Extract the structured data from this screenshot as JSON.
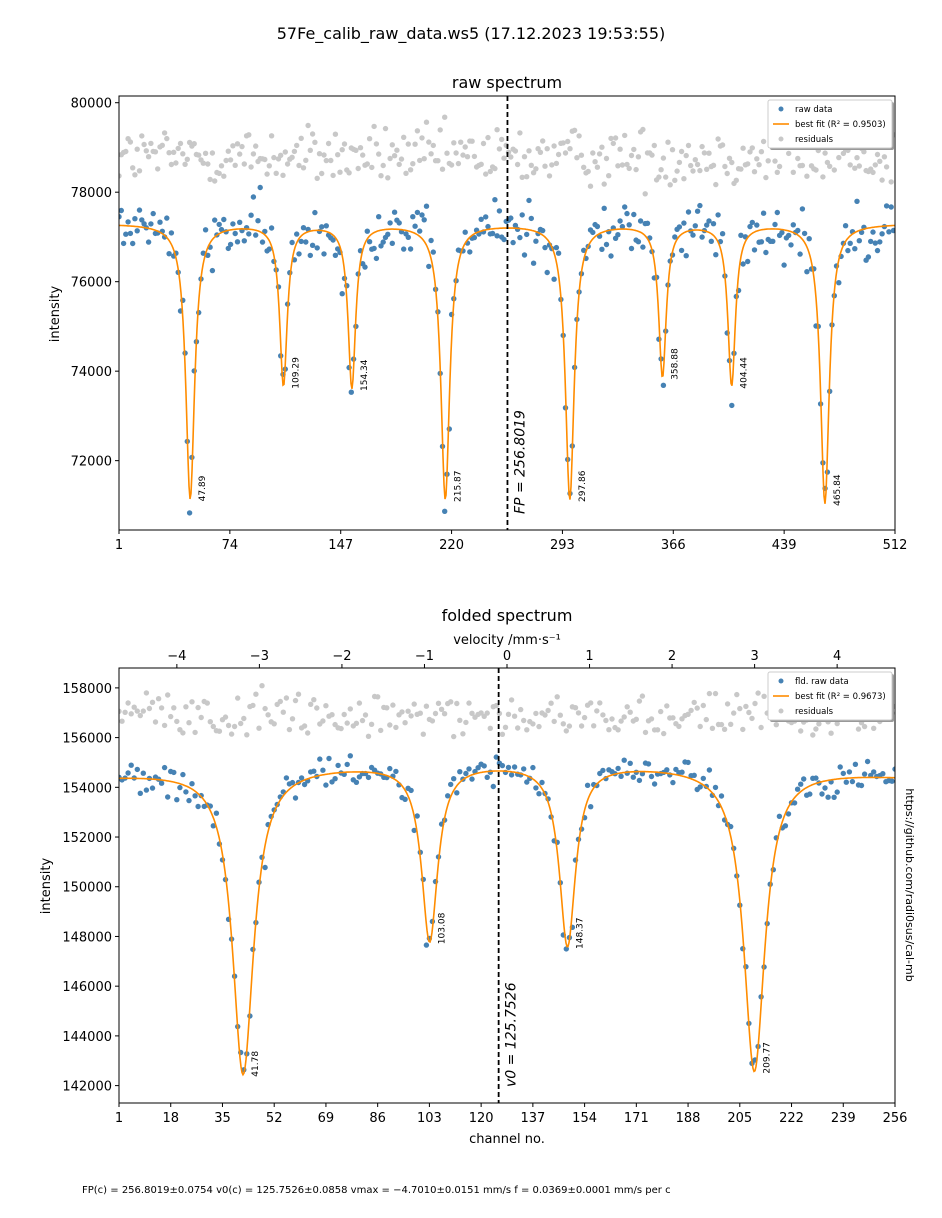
{
  "figure": {
    "suptitle": "57Fe_calib_raw_data.ws5 (17.12.2023 19:53:55)",
    "side_text": "https://github.com/radi0sus/cal-mb",
    "footer": "FP(c) = 256.8019±0.0754  v0(c) = 125.7526±0.0858  vmax = −4.7010±0.0151 mm/s  f = 0.0369±0.0001 mm/s per c",
    "colors": {
      "raw": "#4682b4",
      "fit": "#ff8c00",
      "residuals": "#c8c8c8",
      "marker_line": "#000000"
    }
  },
  "chart_data": [
    {
      "type": "scatter",
      "title": "raw spectrum",
      "xlabel": "",
      "ylabel": "intensity",
      "xlim": [
        1,
        512
      ],
      "ylim": [
        70450,
        80150
      ],
      "xticks": [
        1,
        74,
        147,
        220,
        293,
        366,
        439,
        512
      ],
      "yticks": [
        72000,
        74000,
        76000,
        78000,
        80000
      ],
      "legend": {
        "placement": "top-right",
        "entries": [
          "raw data",
          "best fit (R² = 0.9503)",
          "residuals"
        ]
      },
      "marker_line": {
        "x": 256.8019,
        "label": "FP = 256.8019"
      },
      "baseline": 77300,
      "fit_shape": {
        "envelope_amp": 0,
        "envelope_center": 256,
        "envelope_width": 300
      },
      "peaks": [
        {
          "x": 47.89,
          "depth": 6150,
          "width": 3.5,
          "label": "47.89"
        },
        {
          "x": 109.29,
          "depth": 3600,
          "width": 3.0,
          "label": "109.29"
        },
        {
          "x": 154.34,
          "depth": 3650,
          "width": 3.0,
          "label": "154.34"
        },
        {
          "x": 215.87,
          "depth": 6150,
          "width": 3.5,
          "label": "215.87"
        },
        {
          "x": 297.86,
          "depth": 6150,
          "width": 3.5,
          "label": "297.86"
        },
        {
          "x": 358.88,
          "depth": 3400,
          "width": 3.0,
          "label": "358.88"
        },
        {
          "x": 404.44,
          "depth": 3600,
          "width": 3.0,
          "label": "404.44"
        },
        {
          "x": 465.84,
          "depth": 6250,
          "width": 3.5,
          "label": "465.84"
        }
      ],
      "series": [
        {
          "name": "raw data",
          "noise": 320,
          "step": 1.5
        },
        {
          "name": "best fit (R² = 0.9503)"
        },
        {
          "name": "residuals",
          "offset": 78800,
          "noise": 320
        }
      ]
    },
    {
      "type": "scatter",
      "title": "folded spectrum",
      "xlabel": "channel no.",
      "ylabel": "intensity",
      "secondary_xlabel": "velocity /mm·s⁻¹",
      "xlim": [
        1,
        256
      ],
      "ylim": [
        141300,
        158800
      ],
      "xticks": [
        1,
        18,
        35,
        52,
        69,
        86,
        103,
        120,
        137,
        154,
        171,
        188,
        205,
        222,
        239,
        256
      ],
      "yticks": [
        142000,
        144000,
        146000,
        148000,
        150000,
        152000,
        154000,
        156000,
        158000
      ],
      "secondary_xticks": [
        -4,
        -3,
        -2,
        -1,
        0,
        1,
        2,
        3,
        4
      ],
      "secondary_xlim": [
        -4.701,
        4.701
      ],
      "legend": {
        "placement": "top-right",
        "entries": [
          "fld. raw data",
          "best fit (R² = 0.9673)",
          "residuals"
        ]
      },
      "marker_line": {
        "x": 125.7526,
        "label": "v0 = 125.7526"
      },
      "baseline": 155000,
      "fit_shape": {
        "envelope_amp": 600,
        "envelope_center": 128,
        "envelope_width": 140
      },
      "peaks": [
        {
          "x": 41.78,
          "depth": 12300,
          "width": 4.2,
          "label": "41.78"
        },
        {
          "x": 103.08,
          "depth": 7100,
          "width": 3.2,
          "label": "103.08"
        },
        {
          "x": 148.37,
          "depth": 7300,
          "width": 3.2,
          "label": "148.37"
        },
        {
          "x": 209.77,
          "depth": 12200,
          "width": 4.2,
          "label": "209.77"
        }
      ],
      "series": [
        {
          "name": "fld. raw data",
          "noise": 330,
          "step": 1
        },
        {
          "name": "best fit (R² = 0.9673)"
        },
        {
          "name": "residuals",
          "offset": 156900,
          "noise": 420
        }
      ]
    }
  ]
}
